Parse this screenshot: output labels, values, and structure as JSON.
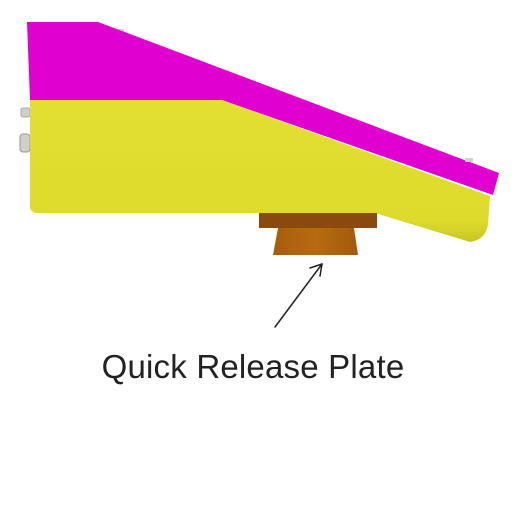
{
  "caption": "Quick Release Plate",
  "colors": {
    "top_shell": "#e000d0",
    "body": "#dedb2c",
    "plate_flange": "#8a4a0e",
    "plate_body": "#b5680f",
    "arrow": "#222222",
    "caption_text": "#222222"
  }
}
